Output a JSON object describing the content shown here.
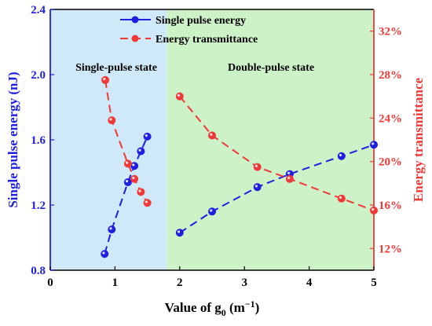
{
  "chart_data": {
    "type": "line",
    "xlabel_main": "Value of g",
    "xlabel_sub": "0",
    "xlabel_unit_open": " (m",
    "xlabel_unit_sup": "−1",
    "xlabel_unit_close": ")",
    "ylabel_left": "Single pulse energy (nJ)",
    "ylabel_right": "Energy transmittance",
    "xlim": [
      0,
      5
    ],
    "ylim_left": [
      0.8,
      2.4
    ],
    "ylim_right": [
      10,
      34
    ],
    "x_ticks": [
      "0",
      "1",
      "2",
      "3",
      "4",
      "5"
    ],
    "y_left_ticks": [
      "0.8",
      "1.2",
      "1.6",
      "2.0",
      "2.4"
    ],
    "y_right_ticks": [
      "12%",
      "16%",
      "20%",
      "24%",
      "28%",
      "32%"
    ],
    "regions": [
      {
        "label": "Single-pulse state",
        "x_range": [
          0,
          1.8
        ],
        "color": "#cfe9f8"
      },
      {
        "label": "Double-pulse state",
        "x_range": [
          1.8,
          5
        ],
        "color": "#cdf2c8"
      }
    ],
    "legend_position": "top-center",
    "series": [
      {
        "name": "Single pulse energy",
        "axis": "left",
        "color": "#1f1fe0",
        "segments": [
          {
            "x": [
              0.84,
              0.95,
              1.2,
              1.3,
              1.4,
              1.5
            ],
            "y": [
              0.9,
              1.05,
              1.34,
              1.44,
              1.53,
              1.62
            ]
          },
          {
            "x": [
              2.0,
              2.5,
              3.2,
              3.7,
              4.5,
              5.0
            ],
            "y": [
              1.03,
              1.16,
              1.31,
              1.39,
              1.5,
              1.57
            ]
          }
        ]
      },
      {
        "name": "Energy transmittance",
        "axis": "right",
        "color": "#f03838",
        "segments": [
          {
            "x": [
              0.85,
              0.95,
              1.2,
              1.3,
              1.4,
              1.5
            ],
            "y": [
              27.5,
              23.8,
              19.8,
              18.4,
              17.2,
              16.2
            ]
          },
          {
            "x": [
              2.0,
              2.5,
              3.2,
              3.7,
              4.5,
              5.0
            ],
            "y": [
              26.0,
              22.4,
              19.5,
              18.4,
              16.6,
              15.5
            ]
          }
        ]
      }
    ]
  }
}
